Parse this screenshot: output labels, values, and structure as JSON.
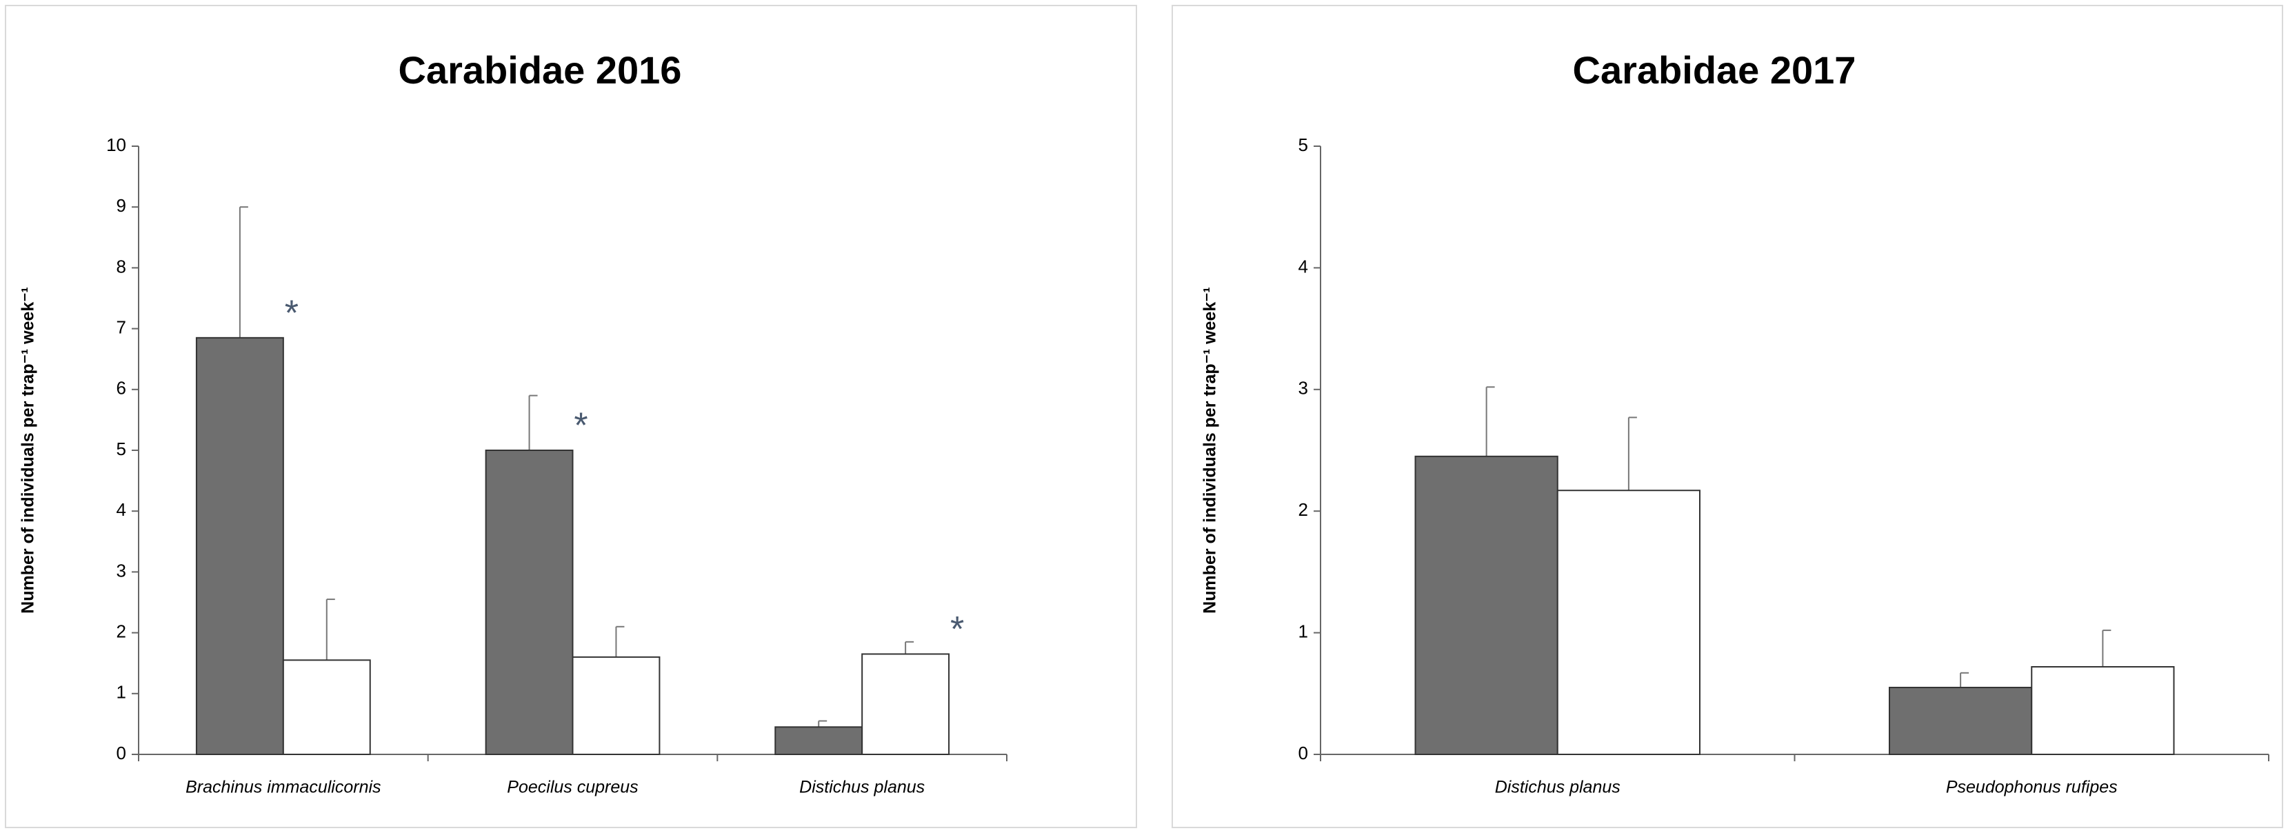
{
  "chart_data": [
    {
      "type": "bar",
      "title": "Carabidae 2016",
      "y_label": "Number of individuals per trap⁻¹ week⁻¹",
      "categories": [
        "Brachinus immaculicornis",
        "Poecilus cupreus",
        "Distichus planus"
      ],
      "series": [
        {
          "color": "#6f6f6f",
          "values": [
            6.85,
            5.0,
            0.45
          ],
          "errors": [
            2.15,
            0.9,
            0.1
          ],
          "annotations": [
            "*",
            "*",
            null
          ]
        },
        {
          "color": "#ffffff",
          "values": [
            1.55,
            1.6,
            1.65
          ],
          "errors": [
            1.0,
            0.5,
            0.2
          ],
          "annotations": [
            null,
            null,
            "*"
          ]
        }
      ],
      "ylim": [
        0,
        10
      ],
      "yticks": [
        0,
        1,
        2,
        3,
        4,
        5,
        6,
        7,
        8,
        9,
        10
      ]
    },
    {
      "type": "bar",
      "title": "Carabidae 2017",
      "y_label": "Number of individuals per trap⁻¹ week⁻¹",
      "categories": [
        "Distichus planus",
        "Pseudophonus rufipes"
      ],
      "series": [
        {
          "color": "#6f6f6f",
          "values": [
            2.45,
            0.55
          ],
          "errors": [
            0.57,
            0.12
          ]
        },
        {
          "color": "#ffffff",
          "values": [
            2.17,
            0.72
          ],
          "errors": [
            0.6,
            0.3
          ]
        }
      ],
      "ylim": [
        0,
        5
      ],
      "yticks": [
        0,
        1,
        2,
        3,
        4,
        5
      ]
    }
  ]
}
